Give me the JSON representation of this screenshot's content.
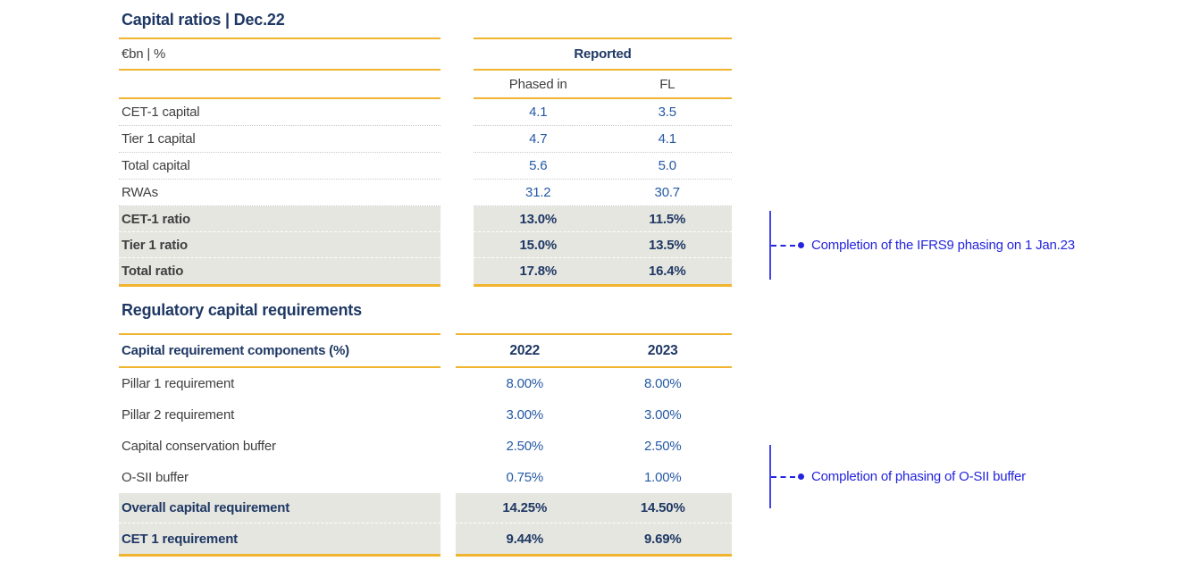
{
  "colors": {
    "navy": "#1F3864",
    "value_blue": "#2459A4",
    "label_gray": "#404040",
    "gold_rule": "#F0B42E",
    "shaded_row_bg": "#E5E6E0",
    "annotation_blue": "#2424DE"
  },
  "capital_ratios": {
    "title": "Capital ratios | Dec.22",
    "unit_label": "€bn | %",
    "group_header": "Reported",
    "columns": [
      "Phased in",
      "FL"
    ],
    "rows": [
      {
        "label": "CET-1 capital",
        "values": [
          "4.1",
          "3.5"
        ]
      },
      {
        "label": "Tier 1 capital",
        "values": [
          "4.7",
          "4.1"
        ]
      },
      {
        "label": "Total capital",
        "values": [
          "5.6",
          "5.0"
        ]
      },
      {
        "label": "RWAs",
        "values": [
          "31.2",
          "30.7"
        ]
      }
    ],
    "highlight_rows": [
      {
        "label": "CET-1 ratio",
        "values": [
          "13.0%",
          "11.5%"
        ]
      },
      {
        "label": "Tier 1 ratio",
        "values": [
          "15.0%",
          "13.5%"
        ]
      },
      {
        "label": "Total ratio",
        "values": [
          "17.8%",
          "16.4%"
        ]
      }
    ]
  },
  "regulatory_requirements": {
    "title": "Regulatory capital requirements",
    "header_label": "Capital requirement components (%)",
    "columns": [
      "2022",
      "2023"
    ],
    "rows": [
      {
        "label": "Pillar 1 requirement",
        "values": [
          "8.00%",
          "8.00%"
        ]
      },
      {
        "label": "Pillar 2 requirement",
        "values": [
          "3.00%",
          "3.00%"
        ]
      },
      {
        "label": "Capital conservation buffer",
        "values": [
          "2.50%",
          "2.50%"
        ]
      },
      {
        "label": "O-SII buffer",
        "values": [
          "0.75%",
          "1.00%"
        ]
      }
    ],
    "highlight_rows": [
      {
        "label": "Overall capital requirement",
        "values": [
          "14.25%",
          "14.50%"
        ]
      },
      {
        "label": "CET 1 requirement",
        "values": [
          "9.44%",
          "9.69%"
        ]
      }
    ]
  },
  "annotations": [
    {
      "text": "Completion of the IFRS9 phasing on 1 Jan.23"
    },
    {
      "text": "Completion of phasing of O-SII buffer"
    }
  ]
}
